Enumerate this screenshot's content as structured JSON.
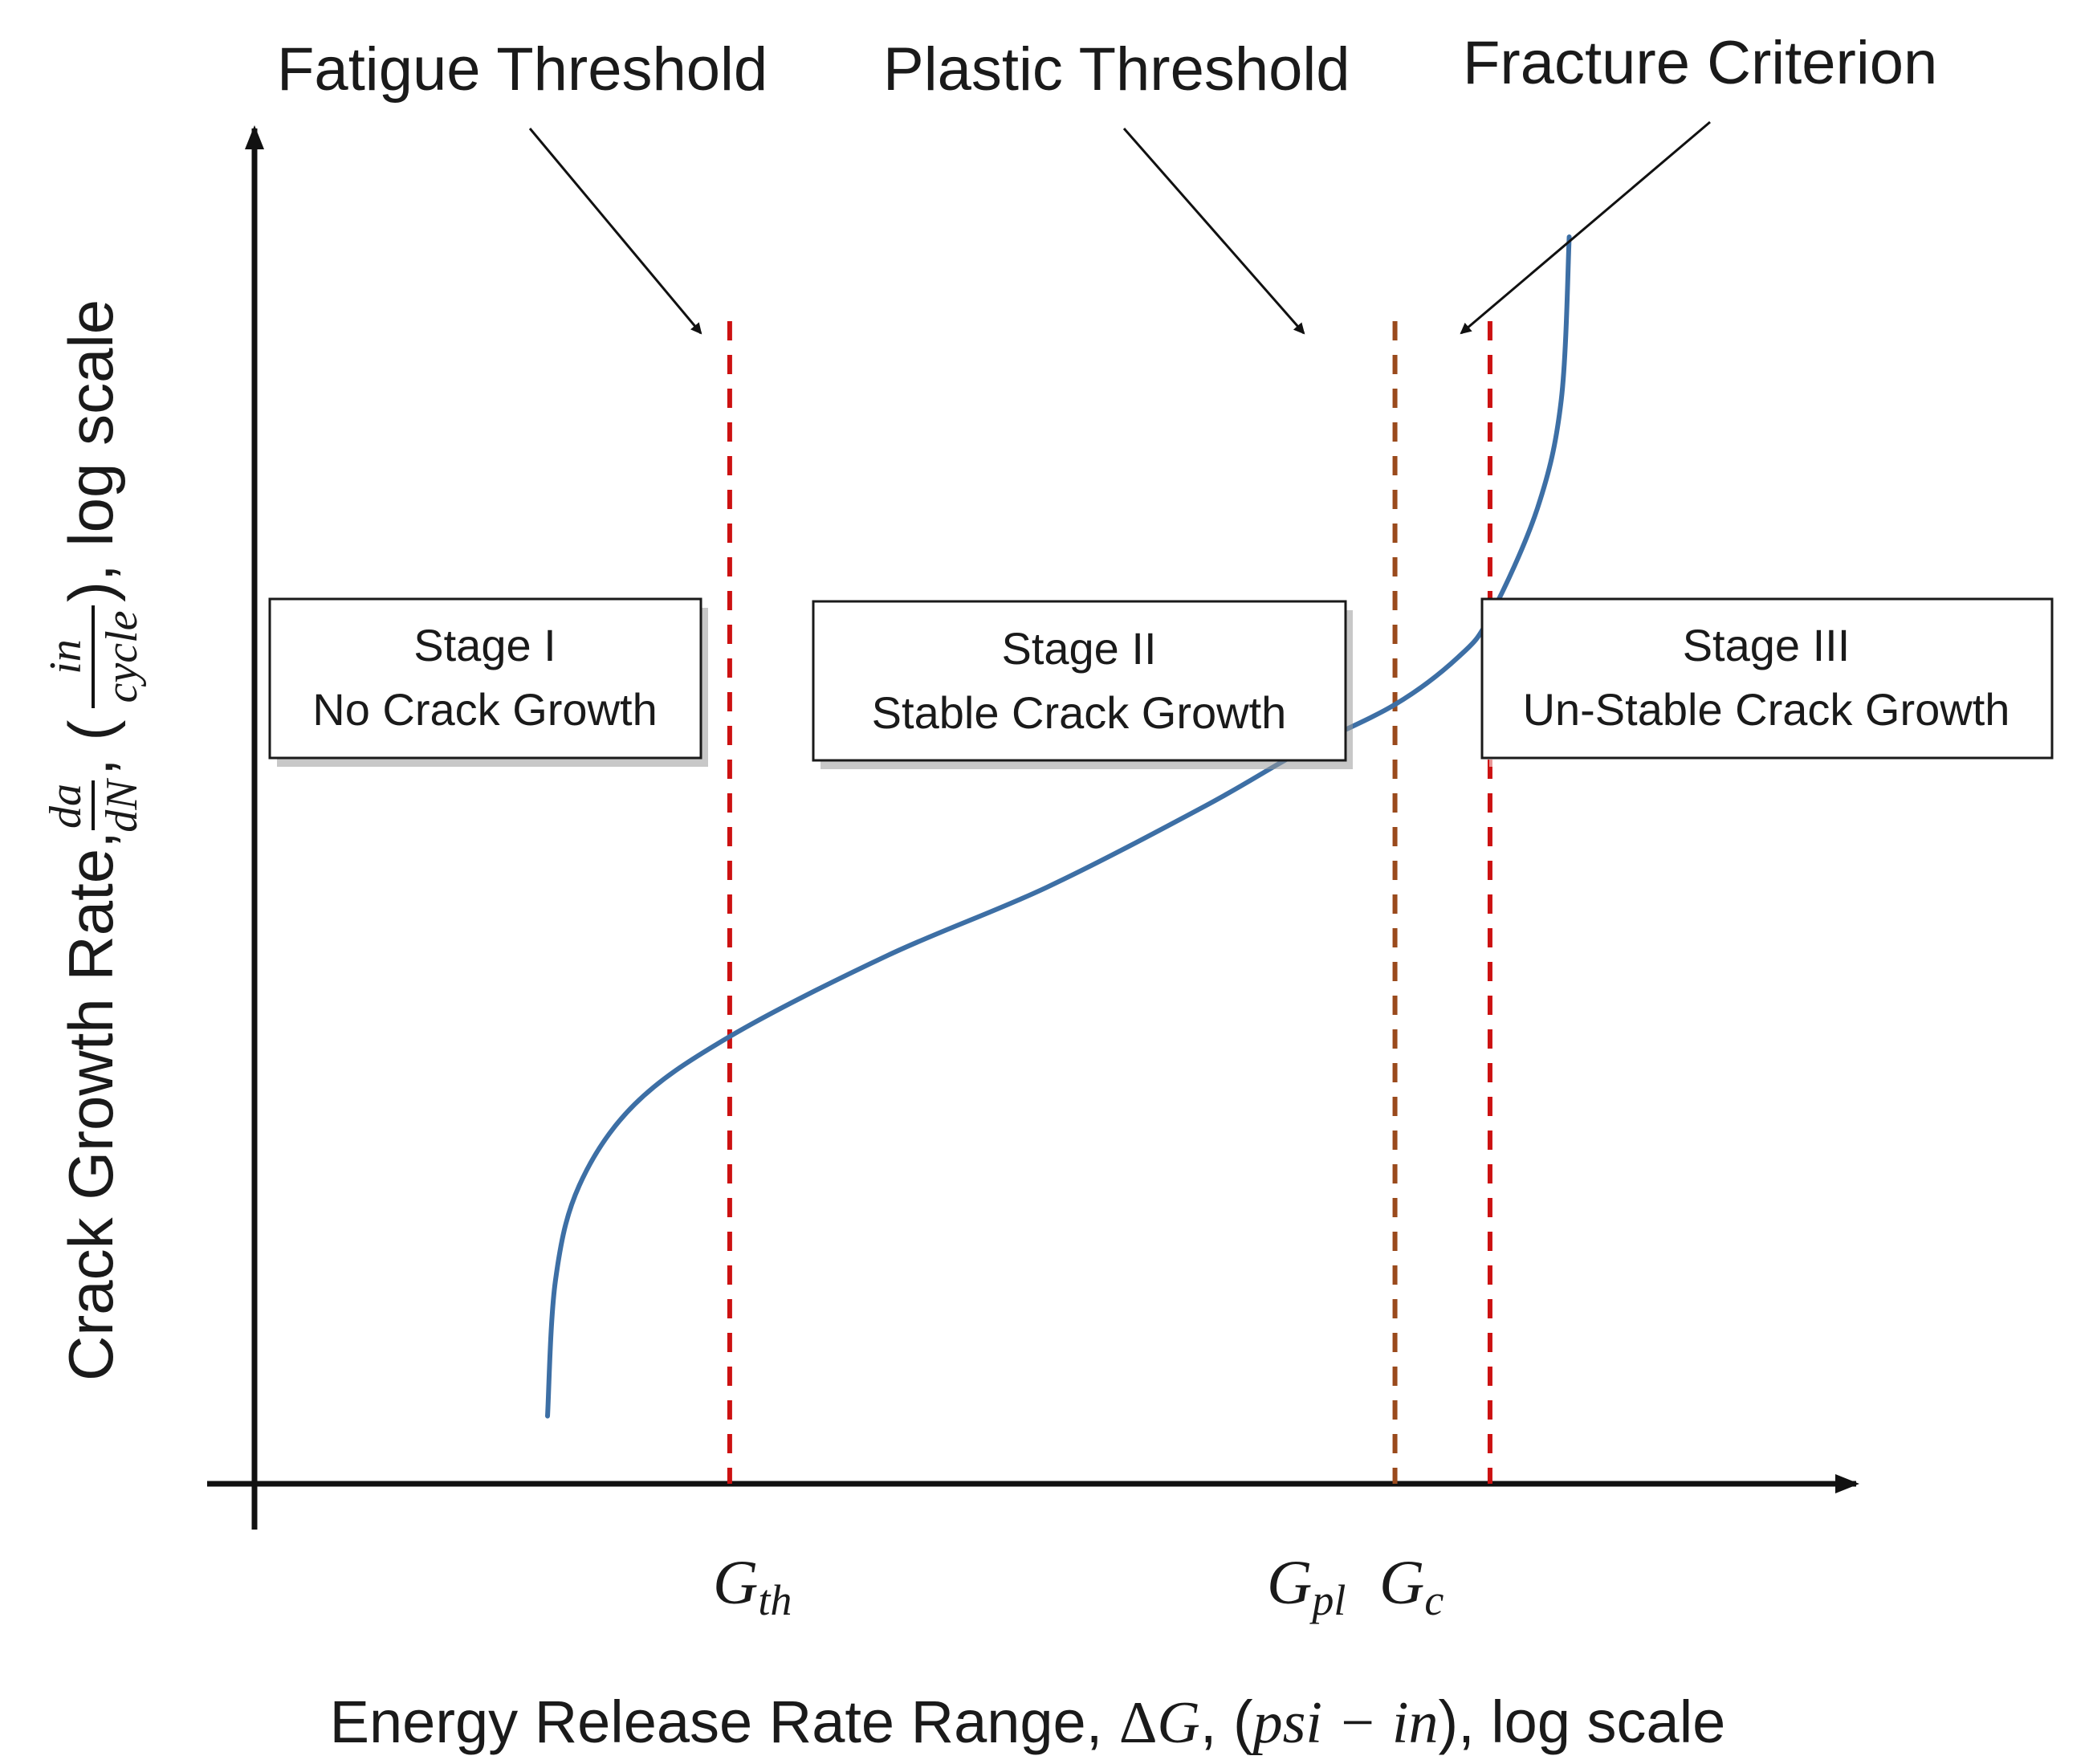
{
  "chart_data": {
    "type": "line",
    "scale": "log-log (schematic)",
    "title": "",
    "xlabel": {
      "prefix": "Energy Release Rate Range, ",
      "delta": "Δ",
      "G": "G",
      "comma1": ", (",
      "unit": "psi − in",
      "suffix": "), log scale"
    },
    "ylabel": {
      "prefix": "Crack Growth Rate, ",
      "frac1_num": "da",
      "frac1_den": "dN",
      "sep": ", (",
      "frac2_num": "in",
      "frac2_den": "cycle",
      "suffix": "), log scale"
    },
    "thresholds": [
      {
        "key": "th",
        "symbol": "G",
        "sub": "th",
        "x": 0.3,
        "annotation": "Fatigue Threshold",
        "color": "#cc1111"
      },
      {
        "key": "pl",
        "symbol": "G",
        "sub": "pl",
        "x": 0.72,
        "annotation": "Plastic Threshold",
        "color": "#9a4a1c"
      },
      {
        "key": "c",
        "symbol": "G",
        "sub": "c",
        "x": 0.78,
        "annotation": "Fracture Criterion",
        "color": "#cc1111"
      }
    ],
    "stages": [
      {
        "title": "Stage I",
        "subtitle": "No Crack Growth"
      },
      {
        "title": "Stage II",
        "subtitle": "Stable Crack Growth"
      },
      {
        "title": "Stage III",
        "subtitle": "Un-Stable Crack Growth"
      }
    ],
    "series": [
      {
        "name": "crack growth curve",
        "color": "#3d6fa5",
        "points": [
          [
            0.185,
            0.05
          ],
          [
            0.19,
            0.15
          ],
          [
            0.205,
            0.22
          ],
          [
            0.24,
            0.28
          ],
          [
            0.3,
            0.33
          ],
          [
            0.4,
            0.39
          ],
          [
            0.5,
            0.44
          ],
          [
            0.6,
            0.5
          ],
          [
            0.66,
            0.54
          ],
          [
            0.72,
            0.575
          ],
          [
            0.76,
            0.61
          ],
          [
            0.78,
            0.64
          ],
          [
            0.81,
            0.72
          ],
          [
            0.825,
            0.8
          ],
          [
            0.83,
            0.92
          ]
        ]
      }
    ],
    "xlim": [
      0,
      1
    ],
    "ylim": [
      0,
      1
    ]
  }
}
